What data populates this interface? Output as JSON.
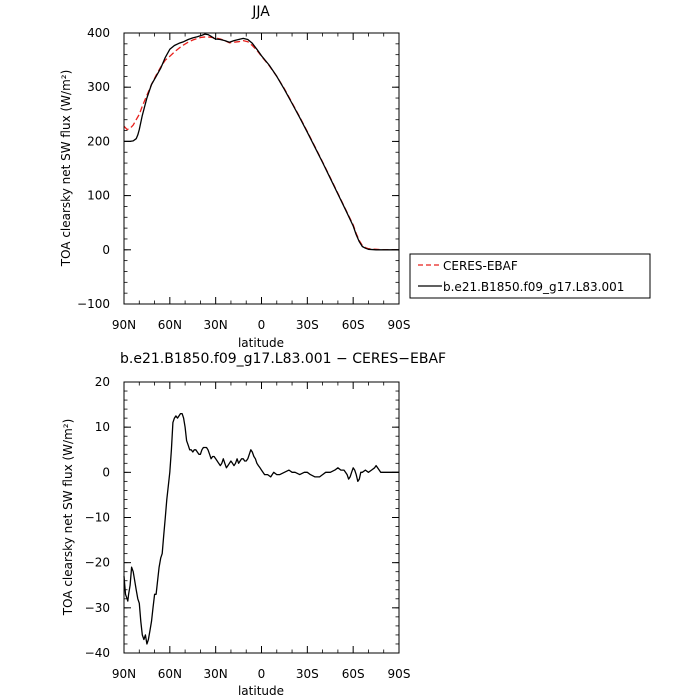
{
  "chart_data": [
    {
      "type": "line",
      "title": "JJA",
      "xlabel": "latitude",
      "ylabel": "TOA clearsky net SW flux (W/m²)",
      "xlim": [
        90,
        -90
      ],
      "ylim": [
        -100,
        400
      ],
      "x_ticks": [
        90,
        60,
        30,
        0,
        -30,
        -60,
        -90
      ],
      "x_tick_labels": [
        "90N",
        "60N",
        "30N",
        "0",
        "30S",
        "60S",
        "90S"
      ],
      "y_ticks": [
        -100,
        0,
        100,
        200,
        300,
        400
      ],
      "y_tick_labels": [
        "−100",
        "0",
        "100",
        "200",
        "300",
        "400"
      ],
      "legend_position": "right",
      "series": [
        {
          "name": "CERES-EBAF",
          "color": "#e8201c",
          "dashed": true,
          "x": [
            90,
            88,
            86,
            84,
            82,
            80,
            78,
            75,
            72,
            69,
            66,
            63,
            60,
            57,
            54,
            51,
            48,
            45,
            42,
            39,
            36,
            33,
            30,
            27,
            24,
            21,
            18,
            15,
            12,
            9,
            6,
            3,
            0,
            -5,
            -10,
            -15,
            -20,
            -25,
            -30,
            -35,
            -40,
            -45,
            -50,
            -55,
            -60,
            -62,
            -64,
            -66,
            -68,
            -70,
            -75,
            -80,
            -85,
            -90
          ],
          "y": [
            228,
            222,
            224,
            230,
            240,
            250,
            265,
            285,
            305,
            322,
            337,
            350,
            357,
            365,
            372,
            378,
            383,
            387,
            390,
            392,
            393,
            392,
            391,
            389,
            386,
            382,
            383,
            384,
            386,
            384,
            377,
            368,
            357,
            340,
            320,
            297,
            271,
            245,
            218,
            190,
            162,
            133,
            104,
            75,
            46,
            30,
            17,
            8,
            4,
            2,
            1,
            0,
            0,
            0
          ]
        },
        {
          "name": "b.e21.B1850.f09_g17.L83.001",
          "color": "#000000",
          "dashed": false,
          "x": [
            90,
            88,
            86,
            84,
            82,
            81,
            80,
            78,
            75,
            72,
            69,
            66,
            63,
            60,
            57,
            54,
            51,
            48,
            45,
            42,
            39,
            37,
            35,
            33,
            31,
            30,
            27,
            24,
            21,
            18,
            15,
            12,
            9,
            6,
            3,
            0,
            -5,
            -10,
            -15,
            -20,
            -25,
            -30,
            -35,
            -40,
            -45,
            -50,
            -55,
            -60,
            -62,
            -64,
            -66,
            -68,
            -70,
            -75,
            -80,
            -85,
            -90
          ],
          "y": [
            200,
            200,
            200,
            201,
            205,
            212,
            222,
            248,
            280,
            305,
            320,
            335,
            355,
            370,
            377,
            381,
            384,
            388,
            391,
            393,
            396,
            398,
            397,
            394,
            390,
            389,
            388,
            386,
            383,
            386,
            388,
            390,
            388,
            381,
            370,
            358,
            341,
            320,
            296,
            270,
            244,
            217,
            189,
            161,
            132,
            103,
            74,
            44,
            28,
            15,
            6,
            3,
            1,
            0,
            0,
            0,
            0
          ]
        }
      ]
    },
    {
      "type": "line",
      "title": "b.e21.B1850.f09_g17.L83.001 − CERES−EBAF",
      "xlabel": "latitude",
      "ylabel": "TOA clearsky net SW flux (W/m²)",
      "xlim": [
        90,
        -90
      ],
      "ylim": [
        -40,
        20
      ],
      "x_ticks": [
        90,
        60,
        30,
        0,
        -30,
        -60,
        -90
      ],
      "x_tick_labels": [
        "90N",
        "60N",
        "30N",
        "0",
        "30S",
        "60S",
        "90S"
      ],
      "y_ticks": [
        -40,
        -30,
        -20,
        -10,
        0,
        10,
        20
      ],
      "y_tick_labels": [
        "−40",
        "−30",
        "−20",
        "−10",
        "0",
        "10",
        "20"
      ],
      "series": [
        {
          "name": "",
          "color": "#000000",
          "dashed": false,
          "x": [
            90,
            89,
            88,
            87.5,
            87,
            86,
            85,
            84,
            83,
            82,
            81,
            80,
            79,
            78,
            77,
            76,
            75,
            74,
            73,
            72,
            71,
            70,
            69,
            68,
            67,
            66,
            65,
            64,
            63,
            62,
            61,
            60,
            59,
            58,
            57,
            56,
            55,
            54,
            53,
            52,
            51,
            50,
            49,
            48,
            47,
            46,
            45,
            44,
            43,
            42,
            41,
            40,
            39,
            38,
            37,
            36,
            35,
            34,
            33,
            32,
            31,
            30,
            29,
            28,
            27,
            26,
            25,
            24,
            23,
            22,
            21,
            20,
            19,
            18,
            17,
            16,
            15,
            14,
            13,
            12,
            11,
            10,
            9,
            8,
            7,
            6,
            5,
            4,
            3,
            2,
            1,
            0,
            -2,
            -4,
            -6,
            -8,
            -10,
            -12,
            -15,
            -18,
            -20,
            -22,
            -25,
            -28,
            -30,
            -32,
            -35,
            -38,
            -40,
            -42,
            -45,
            -48,
            -50,
            -52,
            -54,
            -55,
            -56,
            -57,
            -58,
            -59,
            -60,
            -61,
            -62,
            -63,
            -64,
            -65,
            -66,
            -68,
            -70,
            -72,
            -74,
            -75,
            -76,
            -78,
            -80,
            -85,
            -90
          ],
          "y": [
            -23,
            -27,
            -28,
            -28.5,
            -27,
            -25,
            -21,
            -22,
            -24,
            -26,
            -28,
            -29,
            -33,
            -36,
            -37,
            -36,
            -38,
            -37,
            -35,
            -33,
            -30,
            -27,
            -27,
            -24,
            -21,
            -19,
            -18,
            -14,
            -10,
            -6,
            -3,
            0,
            5,
            11,
            12,
            12.5,
            12,
            12.5,
            13,
            13,
            12,
            10,
            7,
            6,
            5,
            5,
            4.5,
            5,
            5,
            4.5,
            4,
            4,
            5,
            5.5,
            5.5,
            5.5,
            5,
            4,
            3,
            3.5,
            3.5,
            3,
            2.5,
            2,
            1.5,
            2,
            3,
            2,
            1,
            1.5,
            2,
            2.5,
            2,
            1.5,
            2,
            3,
            2,
            2.5,
            3,
            3,
            2.5,
            2.5,
            3,
            4,
            5,
            4.5,
            3.5,
            3,
            2,
            1.5,
            1,
            0.5,
            -0.5,
            -0.5,
            -1,
            0,
            -0.5,
            -0.5,
            0,
            0.5,
            0,
            0,
            -0.5,
            0,
            0,
            -0.5,
            -1,
            -1,
            -0.5,
            0,
            0,
            0.5,
            1,
            0.5,
            0.5,
            0,
            -0.5,
            -1.5,
            -1,
            0,
            1,
            0.5,
            -0.5,
            -2,
            -1.5,
            0,
            0,
            0.5,
            0,
            0.5,
            1,
            1.5,
            1,
            0,
            0,
            0,
            0
          ]
        }
      ]
    }
  ]
}
